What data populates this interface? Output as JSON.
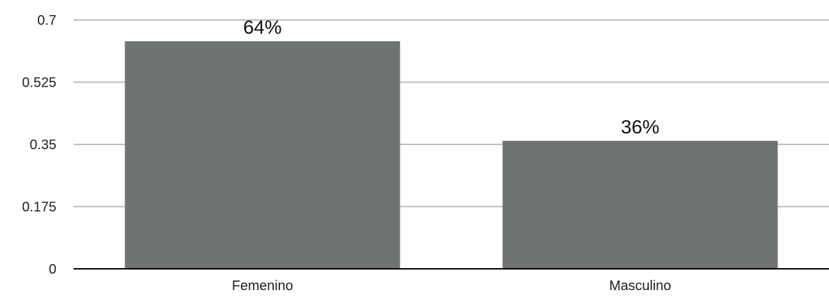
{
  "chart_data": {
    "type": "bar",
    "title": "",
    "xlabel": "",
    "ylabel": "",
    "categories": [
      "Femenino",
      "Masculino"
    ],
    "values": [
      0.64,
      0.36
    ],
    "data_labels": [
      "64%",
      "36%"
    ],
    "ylim": [
      0,
      0.7
    ],
    "yticks": [
      0,
      0.175,
      0.35,
      0.525,
      0.7
    ],
    "ytick_labels": [
      "0",
      "0.175",
      "0.35",
      "0.525",
      "0.7"
    ],
    "grid": true,
    "legend": "none",
    "colors": {
      "bar": "#6f7471",
      "grid": "#bdbdbd",
      "axis": "#000000",
      "text": "#222222"
    }
  }
}
